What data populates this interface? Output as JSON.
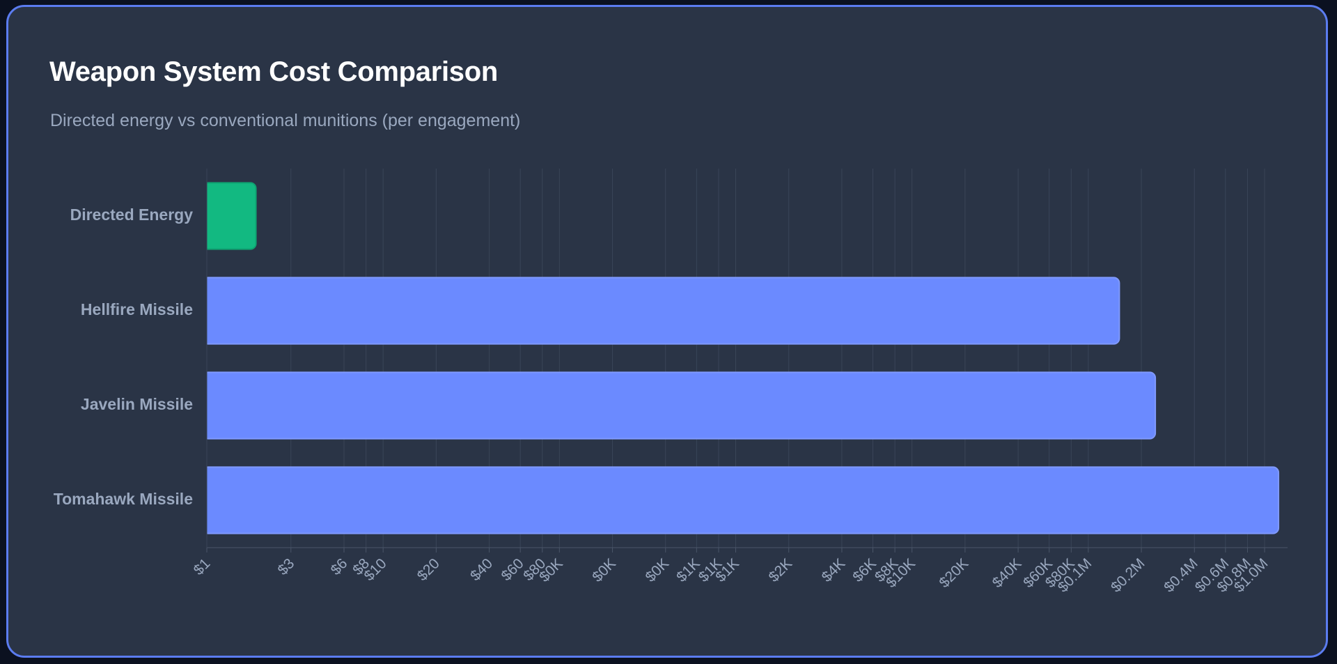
{
  "header": {
    "title": "Weapon System Cost Comparison",
    "subtitle": "Directed energy vs conventional munitions (per engagement)"
  },
  "colors": {
    "background": "#2a3446",
    "border": "#5b7cf0",
    "directed_energy_bar": "#12b981",
    "conventional_bar": "#6b8aff",
    "grid": "#3a4558",
    "label_text": "#9aa8bf",
    "title_text": "#ffffff"
  },
  "chart_data": {
    "type": "bar",
    "orientation": "horizontal",
    "title": "Weapon System Cost Comparison",
    "subtitle": "Directed energy vs conventional munitions (per engagement)",
    "categories": [
      "Directed Energy",
      "Hellfire Missile",
      "Javelin Missile",
      "Tomahawk Missile"
    ],
    "values": [
      1.9,
      150000,
      240000,
      1200000
    ],
    "bar_colors": [
      "#12b981",
      "#6b8aff",
      "#6b8aff",
      "#6b8aff"
    ],
    "x_scale": "log",
    "xlim": [
      1,
      1350000
    ],
    "x_ticks": [
      {
        "value": 1,
        "label": "$1"
      },
      {
        "value": 3,
        "label": "$3"
      },
      {
        "value": 6,
        "label": "$6"
      },
      {
        "value": 8,
        "label": "$8"
      },
      {
        "value": 10,
        "label": "$10"
      },
      {
        "value": 20,
        "label": "$20"
      },
      {
        "value": 40,
        "label": "$40"
      },
      {
        "value": 60,
        "label": "$60"
      },
      {
        "value": 80,
        "label": "$80"
      },
      {
        "value": 100,
        "label": "$0K"
      },
      {
        "value": 200,
        "label": "$0K"
      },
      {
        "value": 400,
        "label": "$0K"
      },
      {
        "value": 600,
        "label": "$1K"
      },
      {
        "value": 800,
        "label": "$1K"
      },
      {
        "value": 1000,
        "label": "$1K"
      },
      {
        "value": 2000,
        "label": "$2K"
      },
      {
        "value": 4000,
        "label": "$4K"
      },
      {
        "value": 6000,
        "label": "$6K"
      },
      {
        "value": 8000,
        "label": "$8K"
      },
      {
        "value": 10000,
        "label": "$10K"
      },
      {
        "value": 20000,
        "label": "$20K"
      },
      {
        "value": 40000,
        "label": "$40K"
      },
      {
        "value": 60000,
        "label": "$60K"
      },
      {
        "value": 80000,
        "label": "$80K"
      },
      {
        "value": 100000,
        "label": "$0.1M"
      },
      {
        "value": 200000,
        "label": "$0.2M"
      },
      {
        "value": 400000,
        "label": "$0.4M"
      },
      {
        "value": 600000,
        "label": "$0.6M"
      },
      {
        "value": 800000,
        "label": "$0.8M"
      },
      {
        "value": 1000000,
        "label": "$1.0M"
      }
    ],
    "grid": true,
    "legend": "none"
  }
}
